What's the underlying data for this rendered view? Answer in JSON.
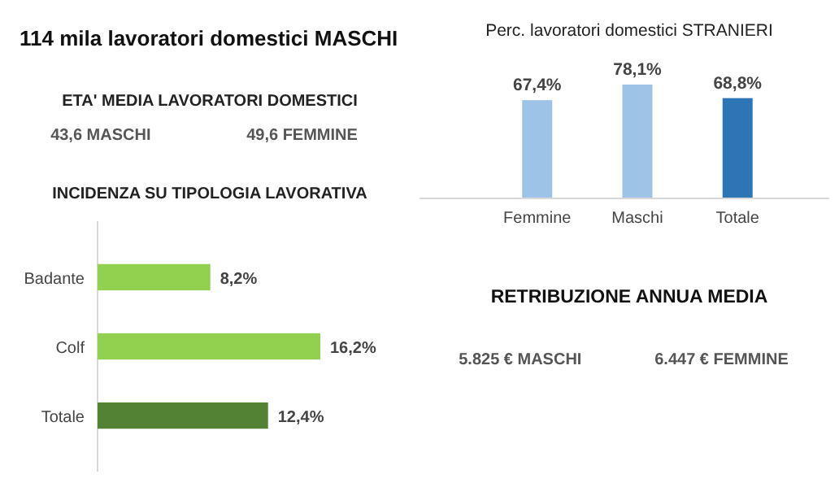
{
  "chart_data": [
    {
      "type": "other",
      "title": "114 mila lavoratori domestici MASCHI",
      "subtitle": "ETA' MEDIA LAVORATORI DOMESTICI",
      "annotations": [
        "43,6 MASCHI",
        "49,6 FEMMINE"
      ]
    },
    {
      "type": "bar",
      "title": "Perc. lavoratori domestici STRANIERI",
      "categories": [
        "Femmine",
        "Maschi",
        "Totale"
      ],
      "values": [
        67.4,
        78.1,
        68.8
      ],
      "colors": [
        "#9dc3e6",
        "#9dc3e6",
        "#2e75b6"
      ],
      "value_labels": [
        "67,4%",
        "78,1%",
        "68,8%"
      ]
    },
    {
      "type": "bar",
      "orientation": "horizontal",
      "title": "INCIDENZA SU TIPOLOGIA LAVORATIVA",
      "categories": [
        "Badante",
        "Colf",
        "Totale"
      ],
      "values": [
        8.2,
        16.2,
        12.4
      ],
      "colors": [
        "#92d050",
        "#92d050",
        "#548235"
      ],
      "value_labels": [
        "8,2%",
        "16,2%",
        "12,4%"
      ]
    },
    {
      "type": "other",
      "title": "RETRIBUZIONE ANNUA MEDIA",
      "annotations": [
        "5.825 €  MASCHI",
        "6.447 €  FEMMINE"
      ]
    }
  ]
}
